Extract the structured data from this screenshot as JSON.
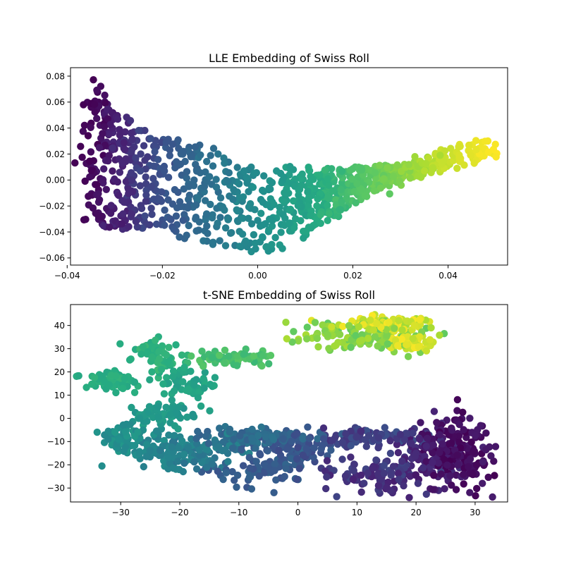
{
  "chart_data": [
    {
      "type": "scatter",
      "title": "LLE Embedding of Swiss Roll",
      "xlabel": "",
      "ylabel": "",
      "xlim": [
        -0.0393,
        0.0525
      ],
      "ylim": [
        -0.0655,
        0.0865
      ],
      "xticks": [
        -0.04,
        -0.02,
        0.0,
        0.02,
        0.04
      ],
      "xtick_labels": [
        "−0.04",
        "−0.02",
        "0.00",
        "0.02",
        "0.04"
      ],
      "yticks": [
        -0.06,
        -0.04,
        -0.02,
        0.0,
        0.02,
        0.04,
        0.06,
        0.08
      ],
      "ytick_labels": [
        "−0.06",
        "−0.04",
        "−0.02",
        "0.00",
        "0.02",
        "0.04",
        "0.06",
        "0.08"
      ],
      "grid": false,
      "colormap": "viridis",
      "point_color_source": "position along roll (t, 0 to 1)",
      "point_count": 1000,
      "random_seed": 7,
      "skeleton": [
        {
          "t": 0.0,
          "x": -0.0355,
          "y_low": -0.035,
          "y_high": 0.08
        },
        {
          "t": 0.1,
          "x": -0.031,
          "y_low": -0.037,
          "y_high": 0.06
        },
        {
          "t": 0.2,
          "x": -0.024,
          "y_low": -0.04,
          "y_high": 0.04
        },
        {
          "t": 0.3,
          "x": -0.016,
          "y_low": -0.044,
          "y_high": 0.03
        },
        {
          "t": 0.4,
          "x": -0.008,
          "y_low": -0.05,
          "y_high": 0.02
        },
        {
          "t": 0.5,
          "x": 0.002,
          "y_low": -0.058,
          "y_high": 0.012
        },
        {
          "t": 0.6,
          "x": 0.011,
          "y_low": -0.04,
          "y_high": 0.01
        },
        {
          "t": 0.7,
          "x": 0.019,
          "y_low": -0.02,
          "y_high": 0.01
        },
        {
          "t": 0.8,
          "x": 0.028,
          "y_low": -0.005,
          "y_high": 0.012
        },
        {
          "t": 0.9,
          "x": 0.037,
          "y_low": 0.005,
          "y_high": 0.022
        },
        {
          "t": 1.0,
          "x": 0.049,
          "y_low": 0.018,
          "y_high": 0.033
        }
      ]
    },
    {
      "type": "scatter",
      "title": "t-SNE Embedding of Swiss Roll",
      "xlabel": "",
      "ylabel": "",
      "xlim": [
        -38.5,
        35.5
      ],
      "ylim": [
        -36,
        49
      ],
      "xticks": [
        -30,
        -20,
        -10,
        0,
        10,
        20,
        30
      ],
      "xtick_labels": [
        "−30",
        "−20",
        "−10",
        "0",
        "10",
        "20",
        "30"
      ],
      "yticks": [
        -30,
        -20,
        -10,
        0,
        10,
        20,
        30,
        40
      ],
      "ytick_labels": [
        "−30",
        "−20",
        "−10",
        "0",
        "10",
        "20",
        "30",
        "40"
      ],
      "grid": false,
      "colormap": "viridis",
      "point_color_source": "position along roll (t, 0 to 1)",
      "random_seed": 11,
      "clusters": [
        {
          "n": 170,
          "cx": 27,
          "cy": -14,
          "sx": 3.2,
          "sy": 9.5,
          "t": [
            0.0,
            0.1
          ]
        },
        {
          "n": 90,
          "cx": 22,
          "cy": -17,
          "sx": 3.5,
          "sy": 8,
          "t": [
            0.08,
            0.16
          ]
        },
        {
          "n": 100,
          "cx": 13,
          "cy": -24,
          "sx": 5.5,
          "sy": 5,
          "t": [
            0.12,
            0.22
          ]
        },
        {
          "n": 90,
          "cx": 12,
          "cy": -8,
          "sx": 6.5,
          "sy": 2.5,
          "t": [
            0.15,
            0.25
          ]
        },
        {
          "n": 80,
          "cx": 0,
          "cy": -14,
          "sx": 4,
          "sy": 5,
          "t": [
            0.22,
            0.3
          ]
        },
        {
          "n": 70,
          "cx": -6,
          "cy": -22,
          "sx": 4.5,
          "sy": 4,
          "t": [
            0.25,
            0.33
          ]
        },
        {
          "n": 110,
          "cx": -8,
          "cy": -8,
          "sx": 6.5,
          "sy": 3,
          "t": [
            0.3,
            0.4
          ]
        },
        {
          "n": 80,
          "cx": -17,
          "cy": -14,
          "sx": 4.5,
          "sy": 5,
          "t": [
            0.38,
            0.46
          ]
        },
        {
          "n": 70,
          "cx": -24,
          "cy": -14,
          "sx": 3.5,
          "sy": 5,
          "t": [
            0.42,
            0.5
          ]
        },
        {
          "n": 60,
          "cx": -30,
          "cy": -8,
          "sx": 2.5,
          "sy": 4,
          "t": [
            0.46,
            0.54
          ]
        },
        {
          "n": 60,
          "cx": -22,
          "cy": 2,
          "sx": 3.5,
          "sy": 3,
          "t": [
            0.5,
            0.57
          ]
        },
        {
          "n": 60,
          "cx": -19,
          "cy": 15,
          "sx": 3,
          "sy": 5,
          "t": [
            0.55,
            0.62
          ]
        },
        {
          "n": 70,
          "cx": -31,
          "cy": 17,
          "sx": 3.5,
          "sy": 2.5,
          "t": [
            0.6,
            0.66
          ]
        },
        {
          "n": 60,
          "cx": -24,
          "cy": 27,
          "sx": 3,
          "sy": 4,
          "t": [
            0.62,
            0.68
          ]
        },
        {
          "n": 70,
          "cx": -11,
          "cy": 26,
          "sx": 4.5,
          "sy": 2.5,
          "t": [
            0.67,
            0.74
          ]
        },
        {
          "n": 130,
          "cx": 10,
          "cy": 36,
          "sx": 6.5,
          "sy": 4,
          "t": [
            0.75,
            0.88
          ]
        },
        {
          "n": 90,
          "cx": 15,
          "cy": 40,
          "sx": 5.5,
          "sy": 2.5,
          "t": [
            0.86,
            1.0
          ]
        },
        {
          "n": 50,
          "cx": 19,
          "cy": 32,
          "sx": 2.5,
          "sy": 2.5,
          "t": [
            0.9,
            1.0
          ]
        }
      ]
    }
  ]
}
